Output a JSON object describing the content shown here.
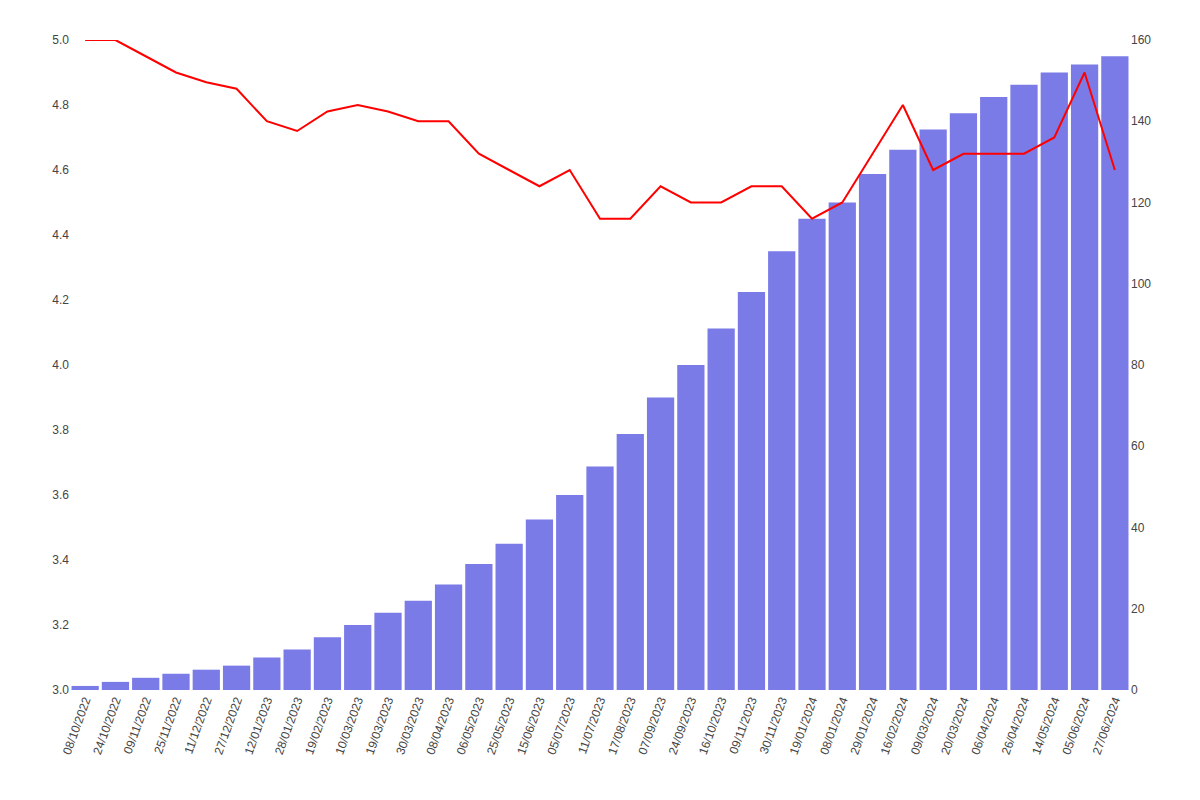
{
  "chart_data": {
    "type": "bar",
    "categories": [
      "08/10/2022",
      "24/10/2022",
      "09/11/2022",
      "25/11/2022",
      "11/12/2022",
      "27/12/2022",
      "12/01/2023",
      "28/01/2023",
      "19/02/2023",
      "10/03/2023",
      "19/03/2023",
      "30/03/2023",
      "08/04/2023",
      "06/05/2023",
      "25/05/2023",
      "15/06/2023",
      "05/07/2023",
      "11/07/2023",
      "17/08/2023",
      "07/09/2023",
      "24/09/2023",
      "16/10/2023",
      "09/11/2023",
      "30/11/2023",
      "19/01/2024",
      "08/01/2024",
      "29/01/2024",
      "16/02/2024",
      "09/03/2024",
      "20/03/2024",
      "06/04/2024",
      "26/04/2024",
      "14/05/2024",
      "05/06/2024",
      "27/06/2024"
    ],
    "series": [
      {
        "type": "bar",
        "color": "#7b7be8",
        "axis": "y2",
        "values": [
          1,
          2,
          3,
          4,
          5,
          6,
          8,
          10,
          13,
          16,
          19,
          22,
          26,
          31,
          36,
          42,
          48,
          55,
          63,
          72,
          80,
          89,
          98,
          108,
          116,
          120,
          127,
          133,
          138,
          142,
          146,
          149,
          152,
          154,
          156
        ]
      },
      {
        "type": "line",
        "color": "#ff0000",
        "values": [
          5.0,
          5.0,
          4.95,
          4.9,
          4.87,
          4.85,
          4.75,
          4.72,
          4.78,
          4.8,
          4.78,
          4.75,
          4.75,
          4.65,
          4.6,
          4.55,
          4.6,
          4.45,
          4.45,
          4.55,
          4.5,
          4.5,
          4.55,
          4.55,
          4.45,
          4.5,
          4.65,
          4.8,
          4.6,
          4.65,
          4.65,
          4.65,
          4.7,
          4.9,
          4.6
        ]
      }
    ],
    "ylim": [
      3.0,
      5.0
    ],
    "yticks": [
      {
        "value": 3.0,
        "label": "3.0"
      },
      3.2,
      3.4,
      3.6,
      3.8,
      {
        "value": 4.0,
        "label": "4.0"
      },
      4.2,
      4.4,
      4.6,
      4.8,
      {
        "value": 5.0,
        "label": "5.0"
      }
    ],
    "y2lim": [
      0,
      160
    ],
    "y2ticks": [
      0,
      20,
      40,
      60,
      80,
      100,
      120,
      140,
      160
    ],
    "grid": false
  }
}
